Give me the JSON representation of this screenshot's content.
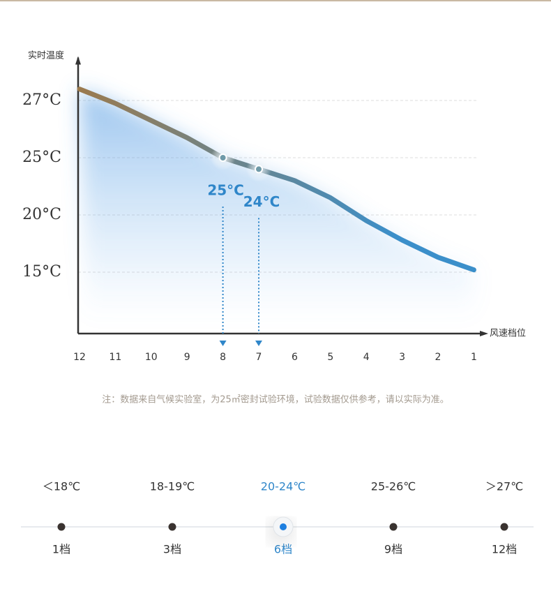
{
  "chart_data": {
    "type": "line",
    "y_label": "实时温度",
    "x_label": "风速档位",
    "categories": [
      "12",
      "11",
      "10",
      "9",
      "8",
      "7",
      "6",
      "5",
      "4",
      "3",
      "2",
      "1"
    ],
    "values": [
      27.4,
      26.9,
      26.3,
      25.7,
      25,
      24,
      23,
      21.5,
      19.5,
      17.8,
      16.3,
      15.2
    ],
    "value_labels": [
      null,
      null,
      null,
      null,
      "25°C",
      "24°C",
      null,
      null,
      null,
      null,
      null,
      null
    ],
    "colors": [
      "#9b7a4e",
      "#3b8fca"
    ],
    "label_color": "#2f86c9",
    "ylim": [
      10,
      28.5
    ],
    "yscale": "piecewise",
    "yticks": [
      {
        "value": 15,
        "label": "15°C"
      },
      {
        "value": 20,
        "label": "20°C"
      },
      {
        "value": 25,
        "label": "25°C"
      },
      {
        "value": 27,
        "label": "27°C"
      }
    ],
    "grid": true,
    "note": "注：数据来自气候实验室，为25㎡密封试验环境，试验数据仅供参考，请以实际为准。"
  },
  "levels": [
    {
      "range": "＜18℃",
      "label": "1档",
      "selected": false
    },
    {
      "range": "18-19℃",
      "label": "3档",
      "selected": false
    },
    {
      "range": "20-24℃",
      "label": "6档",
      "selected": true
    },
    {
      "range": "25-26℃",
      "label": "9档",
      "selected": false
    },
    {
      "range": "＞27℃",
      "label": "12档",
      "selected": false
    }
  ]
}
